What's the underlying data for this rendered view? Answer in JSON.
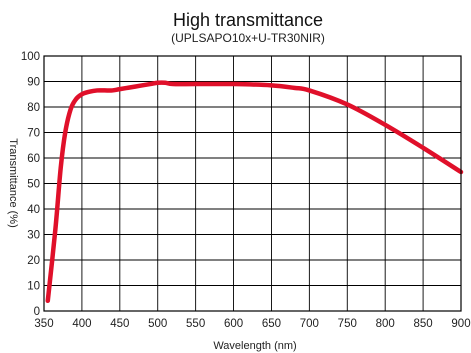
{
  "chart_data": {
    "type": "line",
    "title": "High transmittance",
    "subtitle": "(UPLSAPO10x+U-TR30NIR)",
    "xlabel": "Wavelength (nm)",
    "ylabel": "Transmittance (%)",
    "xlim": [
      350,
      900
    ],
    "ylim": [
      0,
      100
    ],
    "x_ticks": [
      "350",
      "400",
      "450",
      "500",
      "550",
      "600",
      "650",
      "700",
      "750",
      "800",
      "850",
      "900"
    ],
    "y_ticks": [
      "0",
      "10",
      "20",
      "30",
      "40",
      "50",
      "60",
      "70",
      "80",
      "90",
      "100"
    ],
    "grid": true,
    "line_color": "#e0102a",
    "series": [
      {
        "x": [
          355,
          365,
          372,
          378,
          385,
          392,
          400,
          410,
          420,
          430,
          440,
          450,
          470,
          490,
          500,
          510,
          520,
          550,
          600,
          650,
          680,
          700,
          750,
          800,
          850,
          900
        ],
        "y": [
          4,
          32,
          56,
          70,
          79,
          83,
          85,
          86,
          86.5,
          86.5,
          86.5,
          87,
          88,
          89,
          89.5,
          89.5,
          89,
          89,
          89,
          88.5,
          87.5,
          86.5,
          81,
          73,
          64,
          54.5
        ]
      }
    ]
  }
}
